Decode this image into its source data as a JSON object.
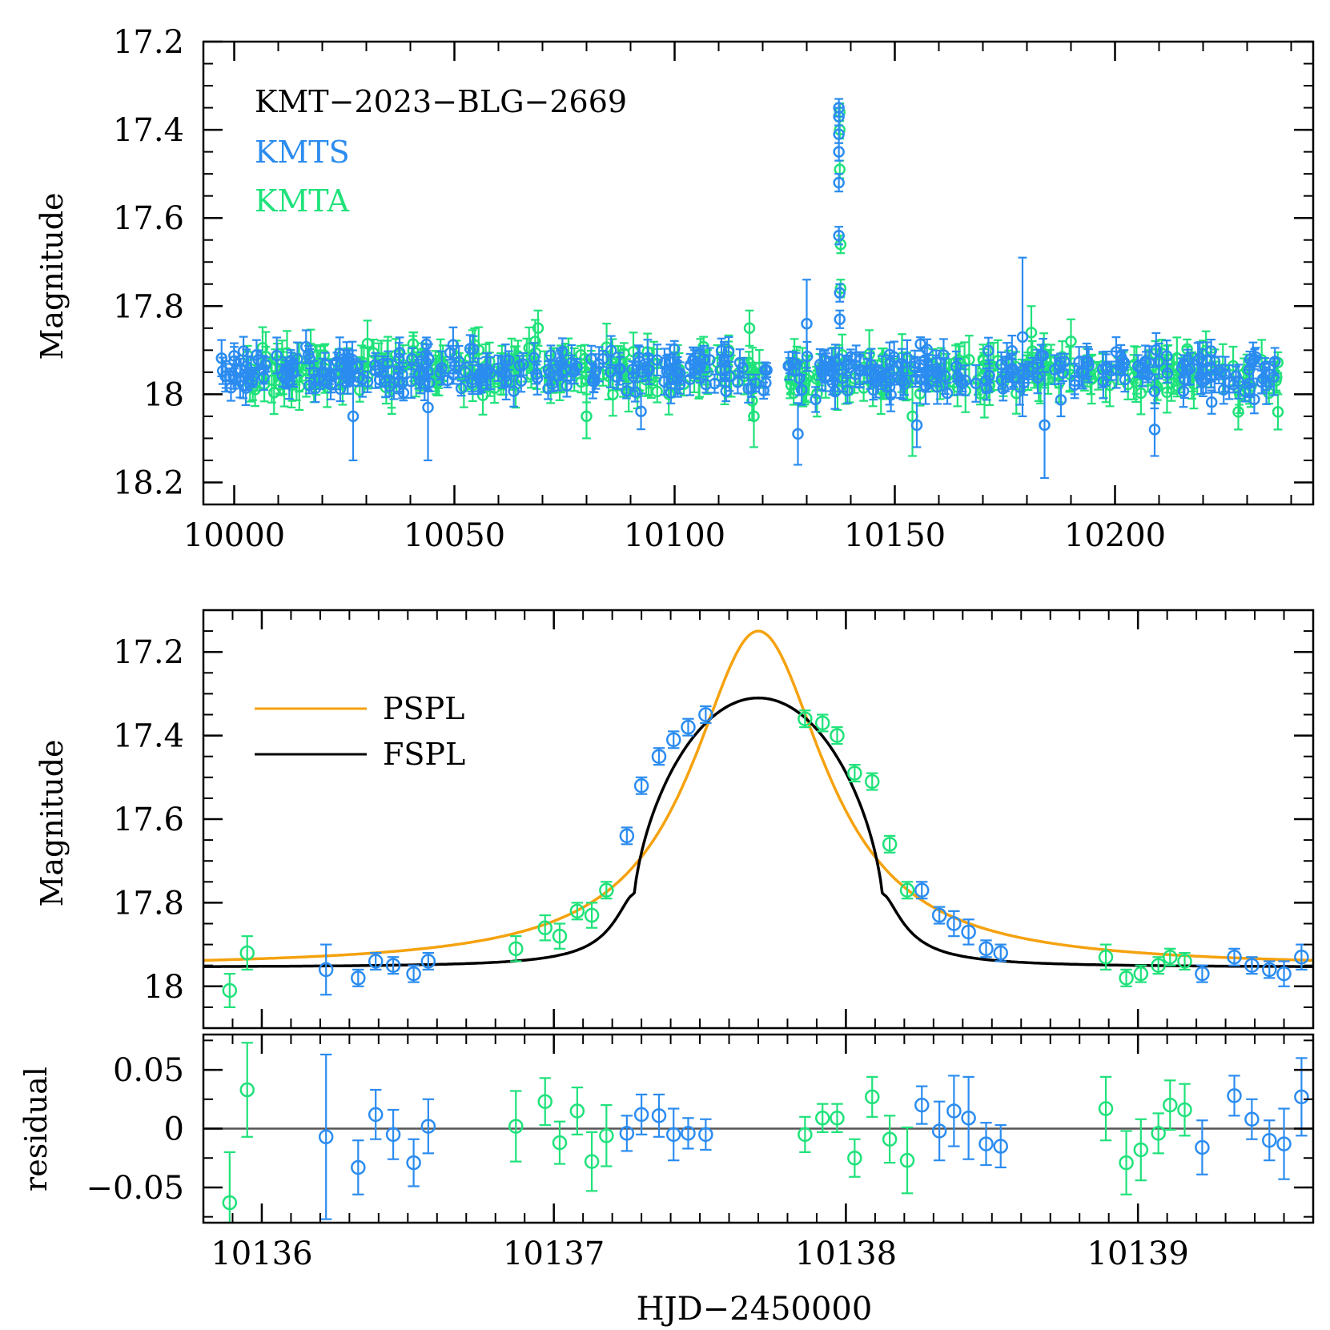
{
  "colors": {
    "kmts": "#2b8cf0",
    "kmta": "#1fe27a",
    "pspl": "#f5a20f",
    "fspl": "#000000",
    "axis": "#000000",
    "zero_line": "#555555"
  },
  "chart_data": [
    {
      "id": "overview",
      "type": "scatter",
      "title": "",
      "ylabel": "Magnitude",
      "xlabel": "",
      "xlim": [
        9993,
        10245
      ],
      "ylim": [
        18.25,
        17.2
      ],
      "y_inverted": true,
      "xticks": [
        10000,
        10050,
        10100,
        10150,
        10200
      ],
      "xtick_labels": [
        "10000",
        "10050",
        "10100",
        "10150",
        "10200"
      ],
      "yticks": [
        17.2,
        17.4,
        17.6,
        17.8,
        18.0,
        18.2
      ],
      "ytick_labels": [
        "17.2",
        "17.4",
        "17.6",
        "17.8",
        "18",
        "18.2"
      ],
      "legend_position": "top-left",
      "legend": [
        {
          "label": "KMT−2023−BLG−2669",
          "color": "#000000"
        },
        {
          "label": "KMTS",
          "color": "#2b8cf0"
        },
        {
          "label": "KMTA",
          "color": "#1fe27a"
        }
      ],
      "baseline_magnitude": 17.95,
      "series": [
        {
          "name": "KMTS",
          "color": "#2b8cf0",
          "x_range": [
            9997,
            10237
          ],
          "typical_error": 0.03,
          "season_gaps": [
            [
              10121,
              10125
            ]
          ],
          "outlier_points": [
            {
              "x": 10027,
              "y": 18.05,
              "err": 0.1
            },
            {
              "x": 10044,
              "y": 18.03,
              "err": 0.12
            },
            {
              "x": 10128,
              "y": 18.09,
              "err": 0.07
            },
            {
              "x": 10130,
              "y": 17.84,
              "err": 0.1
            },
            {
              "x": 10155,
              "y": 18.07,
              "err": 0.05
            },
            {
              "x": 10179,
              "y": 17.87,
              "err": 0.18
            },
            {
              "x": 10184,
              "y": 18.07,
              "err": 0.12
            },
            {
              "x": 10209,
              "y": 18.08,
              "err": 0.06
            }
          ],
          "peak_points": [
            {
              "x": 10137.3,
              "y": 17.35,
              "err": 0.02
            },
            {
              "x": 10137.3,
              "y": 17.37,
              "err": 0.02
            },
            {
              "x": 10137.3,
              "y": 17.41,
              "err": 0.02
            },
            {
              "x": 10137.3,
              "y": 17.45,
              "err": 0.02
            },
            {
              "x": 10137.3,
              "y": 17.52,
              "err": 0.02
            },
            {
              "x": 10137.3,
              "y": 17.64,
              "err": 0.02
            },
            {
              "x": 10137.5,
              "y": 17.77,
              "err": 0.02
            },
            {
              "x": 10137.5,
              "y": 17.83,
              "err": 0.02
            }
          ]
        },
        {
          "name": "KMTA",
          "color": "#1fe27a",
          "x_range": [
            10003,
            10237
          ],
          "typical_error": 0.04,
          "season_gaps": [
            [
              10121,
              10125
            ]
          ],
          "outlier_points": [
            {
              "x": 10013,
              "y": 17.98,
              "err": 0.05
            },
            {
              "x": 10069,
              "y": 17.85,
              "err": 0.04
            },
            {
              "x": 10080,
              "y": 18.05,
              "err": 0.05
            },
            {
              "x": 10117,
              "y": 17.85,
              "err": 0.04
            },
            {
              "x": 10118,
              "y": 18.05,
              "err": 0.07
            },
            {
              "x": 10154,
              "y": 18.05,
              "err": 0.09
            },
            {
              "x": 10181,
              "y": 17.86,
              "err": 0.06
            },
            {
              "x": 10190,
              "y": 17.88,
              "err": 0.05
            },
            {
              "x": 10228,
              "y": 18.04,
              "err": 0.04
            },
            {
              "x": 10237,
              "y": 18.04,
              "err": 0.04
            }
          ],
          "peak_points": [
            {
              "x": 10137.5,
              "y": 17.36,
              "err": 0.02
            },
            {
              "x": 10137.5,
              "y": 17.4,
              "err": 0.02
            },
            {
              "x": 10137.5,
              "y": 17.49,
              "err": 0.02
            },
            {
              "x": 10137.7,
              "y": 17.66,
              "err": 0.02
            },
            {
              "x": 10137.7,
              "y": 17.76,
              "err": 0.02
            }
          ]
        }
      ]
    },
    {
      "id": "zoom",
      "type": "scatter",
      "title": "",
      "ylabel": "Magnitude",
      "xlabel": "",
      "xlim": [
        10135.8,
        10139.6
      ],
      "ylim": [
        18.1,
        17.1
      ],
      "y_inverted": true,
      "xticks": [
        10136,
        10137,
        10138,
        10139
      ],
      "yticks": [
        17.2,
        17.4,
        17.6,
        17.8,
        18.0
      ],
      "ytick_labels": [
        "17.2",
        "17.4",
        "17.6",
        "17.8",
        "18"
      ],
      "legend_position": "upper-left",
      "legend": [
        {
          "label": "PSPL",
          "color": "#f5a20f"
        },
        {
          "label": "FSPL",
          "color": "#000000"
        }
      ],
      "models": {
        "t0": 10137.7,
        "baseline": 17.955,
        "pspl": {
          "name": "PSPL",
          "peak_magnitude": 17.15,
          "width_days": 0.28
        },
        "fspl": {
          "name": "FSPL",
          "peak_magnitude": 17.31,
          "rho_days": 0.43
        }
      },
      "series": [
        {
          "name": "KMTS",
          "color": "#2b8cf0",
          "points": [
            {
              "x": 10136.22,
              "y": 17.96,
              "err": 0.06
            },
            {
              "x": 10136.33,
              "y": 17.98,
              "err": 0.02
            },
            {
              "x": 10136.39,
              "y": 17.94,
              "err": 0.02
            },
            {
              "x": 10136.45,
              "y": 17.95,
              "err": 0.02
            },
            {
              "x": 10136.52,
              "y": 17.97,
              "err": 0.02
            },
            {
              "x": 10136.57,
              "y": 17.94,
              "err": 0.02
            },
            {
              "x": 10137.25,
              "y": 17.64,
              "err": 0.02
            },
            {
              "x": 10137.3,
              "y": 17.52,
              "err": 0.02
            },
            {
              "x": 10137.36,
              "y": 17.45,
              "err": 0.02
            },
            {
              "x": 10137.41,
              "y": 17.41,
              "err": 0.02
            },
            {
              "x": 10137.46,
              "y": 17.38,
              "err": 0.02
            },
            {
              "x": 10137.52,
              "y": 17.35,
              "err": 0.02
            },
            {
              "x": 10138.26,
              "y": 17.77,
              "err": 0.02
            },
            {
              "x": 10138.32,
              "y": 17.83,
              "err": 0.02
            },
            {
              "x": 10138.37,
              "y": 17.85,
              "err": 0.03
            },
            {
              "x": 10138.42,
              "y": 17.87,
              "err": 0.03
            },
            {
              "x": 10138.48,
              "y": 17.91,
              "err": 0.02
            },
            {
              "x": 10138.53,
              "y": 17.92,
              "err": 0.02
            },
            {
              "x": 10139.22,
              "y": 17.97,
              "err": 0.02
            },
            {
              "x": 10139.33,
              "y": 17.93,
              "err": 0.02
            },
            {
              "x": 10139.39,
              "y": 17.95,
              "err": 0.02
            },
            {
              "x": 10139.45,
              "y": 17.96,
              "err": 0.02
            },
            {
              "x": 10139.5,
              "y": 17.97,
              "err": 0.03
            },
            {
              "x": 10139.56,
              "y": 17.93,
              "err": 0.03
            }
          ]
        },
        {
          "name": "KMTA",
          "color": "#1fe27a",
          "points": [
            {
              "x": 10135.89,
              "y": 18.01,
              "err": 0.04
            },
            {
              "x": 10135.95,
              "y": 17.92,
              "err": 0.04
            },
            {
              "x": 10136.87,
              "y": 17.91,
              "err": 0.03
            },
            {
              "x": 10136.97,
              "y": 17.86,
              "err": 0.03
            },
            {
              "x": 10137.02,
              "y": 17.88,
              "err": 0.03
            },
            {
              "x": 10137.08,
              "y": 17.82,
              "err": 0.02
            },
            {
              "x": 10137.13,
              "y": 17.83,
              "err": 0.03
            },
            {
              "x": 10137.18,
              "y": 17.77,
              "err": 0.02
            },
            {
              "x": 10137.86,
              "y": 17.36,
              "err": 0.02
            },
            {
              "x": 10137.92,
              "y": 17.37,
              "err": 0.02
            },
            {
              "x": 10137.97,
              "y": 17.4,
              "err": 0.02
            },
            {
              "x": 10138.03,
              "y": 17.49,
              "err": 0.02
            },
            {
              "x": 10138.09,
              "y": 17.51,
              "err": 0.02
            },
            {
              "x": 10138.15,
              "y": 17.66,
              "err": 0.02
            },
            {
              "x": 10138.21,
              "y": 17.77,
              "err": 0.02
            },
            {
              "x": 10138.89,
              "y": 17.93,
              "err": 0.03
            },
            {
              "x": 10138.96,
              "y": 17.98,
              "err": 0.02
            },
            {
              "x": 10139.01,
              "y": 17.97,
              "err": 0.02
            },
            {
              "x": 10139.07,
              "y": 17.95,
              "err": 0.02
            },
            {
              "x": 10139.11,
              "y": 17.93,
              "err": 0.02
            },
            {
              "x": 10139.16,
              "y": 17.94,
              "err": 0.02
            }
          ]
        }
      ]
    },
    {
      "id": "residual",
      "type": "scatter",
      "title": "",
      "ylabel": "residual",
      "xlabel": "HJD−2450000",
      "xlim": [
        10135.8,
        10139.6
      ],
      "ylim": [
        -0.08,
        0.08
      ],
      "xticks": [
        10136,
        10137,
        10138,
        10139
      ],
      "xtick_labels": [
        "10136",
        "10137",
        "10138",
        "10139"
      ],
      "yticks": [
        -0.05,
        0,
        0.05
      ],
      "ytick_labels": [
        "−0.05",
        "0",
        "0.05"
      ],
      "zero_line": true,
      "series": [
        {
          "name": "KMTS",
          "color": "#2b8cf0",
          "points": [
            {
              "x": 10136.22,
              "y": -0.007,
              "err": 0.07
            },
            {
              "x": 10136.33,
              "y": -0.033,
              "err": 0.023
            },
            {
              "x": 10136.39,
              "y": 0.012,
              "err": 0.021
            },
            {
              "x": 10136.45,
              "y": -0.005,
              "err": 0.021
            },
            {
              "x": 10136.52,
              "y": -0.029,
              "err": 0.02
            },
            {
              "x": 10136.57,
              "y": 0.002,
              "err": 0.023
            },
            {
              "x": 10137.25,
              "y": -0.004,
              "err": 0.015
            },
            {
              "x": 10137.3,
              "y": 0.012,
              "err": 0.017
            },
            {
              "x": 10137.36,
              "y": 0.011,
              "err": 0.018
            },
            {
              "x": 10137.41,
              "y": -0.005,
              "err": 0.022
            },
            {
              "x": 10137.46,
              "y": -0.004,
              "err": 0.013
            },
            {
              "x": 10137.52,
              "y": -0.005,
              "err": 0.013
            },
            {
              "x": 10138.26,
              "y": 0.02,
              "err": 0.016
            },
            {
              "x": 10138.32,
              "y": -0.002,
              "err": 0.025
            },
            {
              "x": 10138.37,
              "y": 0.015,
              "err": 0.03
            },
            {
              "x": 10138.42,
              "y": 0.009,
              "err": 0.035
            },
            {
              "x": 10138.48,
              "y": -0.013,
              "err": 0.018
            },
            {
              "x": 10138.53,
              "y": -0.015,
              "err": 0.018
            },
            {
              "x": 10139.22,
              "y": -0.016,
              "err": 0.023
            },
            {
              "x": 10139.33,
              "y": 0.028,
              "err": 0.017
            },
            {
              "x": 10139.39,
              "y": 0.008,
              "err": 0.017
            },
            {
              "x": 10139.45,
              "y": -0.01,
              "err": 0.017
            },
            {
              "x": 10139.5,
              "y": -0.013,
              "err": 0.03
            },
            {
              "x": 10139.56,
              "y": 0.027,
              "err": 0.033
            }
          ]
        },
        {
          "name": "KMTA",
          "color": "#1fe27a",
          "points": [
            {
              "x": 10135.89,
              "y": -0.063,
              "err": 0.043
            },
            {
              "x": 10135.95,
              "y": 0.033,
              "err": 0.04
            },
            {
              "x": 10136.87,
              "y": 0.002,
              "err": 0.03
            },
            {
              "x": 10136.97,
              "y": 0.023,
              "err": 0.02
            },
            {
              "x": 10137.02,
              "y": -0.012,
              "err": 0.018
            },
            {
              "x": 10137.08,
              "y": 0.015,
              "err": 0.02
            },
            {
              "x": 10137.13,
              "y": -0.028,
              "err": 0.025
            },
            {
              "x": 10137.18,
              "y": -0.006,
              "err": 0.026
            },
            {
              "x": 10137.86,
              "y": -0.005,
              "err": 0.015
            },
            {
              "x": 10137.92,
              "y": 0.009,
              "err": 0.012
            },
            {
              "x": 10137.97,
              "y": 0.009,
              "err": 0.012
            },
            {
              "x": 10138.03,
              "y": -0.025,
              "err": 0.016
            },
            {
              "x": 10138.09,
              "y": 0.027,
              "err": 0.017
            },
            {
              "x": 10138.15,
              "y": -0.009,
              "err": 0.02
            },
            {
              "x": 10138.21,
              "y": -0.027,
              "err": 0.028
            },
            {
              "x": 10138.89,
              "y": 0.017,
              "err": 0.027
            },
            {
              "x": 10138.96,
              "y": -0.029,
              "err": 0.027
            },
            {
              "x": 10139.01,
              "y": -0.018,
              "err": 0.026
            },
            {
              "x": 10139.07,
              "y": -0.004,
              "err": 0.017
            },
            {
              "x": 10139.11,
              "y": 0.02,
              "err": 0.021
            },
            {
              "x": 10139.16,
              "y": 0.016,
              "err": 0.022
            }
          ]
        }
      ]
    }
  ]
}
